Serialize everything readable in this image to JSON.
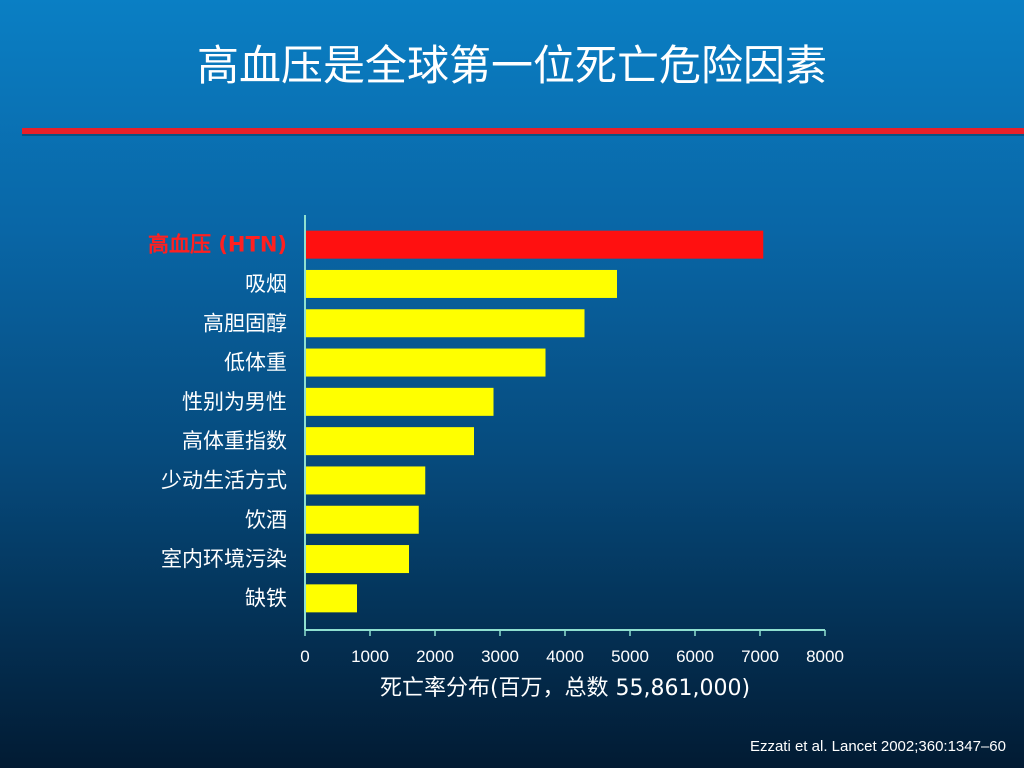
{
  "slide": {
    "title": "高血压是全球第一位死亡危险因素",
    "citation": "Ezzati et al. Lancet 2002;360:1347–60"
  },
  "colors": {
    "highlight_bar": "#ff1010",
    "bar": "#ffff00",
    "highlight_label": "#ff2020",
    "axis": "#8fe0d0",
    "title_rule": "#e8202a"
  },
  "chart_data": {
    "type": "bar",
    "orientation": "horizontal",
    "categories": [
      "高血压 (HTN)",
      "吸烟",
      "高胆固醇",
      "低体重",
      "性别为男性",
      "高体重指数",
      "少动生活方式",
      "饮酒",
      "室内环境污染",
      "缺铁"
    ],
    "values": [
      7050,
      4800,
      4300,
      3700,
      2900,
      2600,
      1850,
      1750,
      1600,
      800
    ],
    "highlight_index": 0,
    "xlim": [
      0,
      8000
    ],
    "xticks": [
      0,
      1000,
      2000,
      3000,
      4000,
      5000,
      6000,
      7000,
      8000
    ],
    "xlabel": "死亡率分布(百万，总数 55,861,000)",
    "ylabel": "",
    "grid": false,
    "legend": "none"
  }
}
